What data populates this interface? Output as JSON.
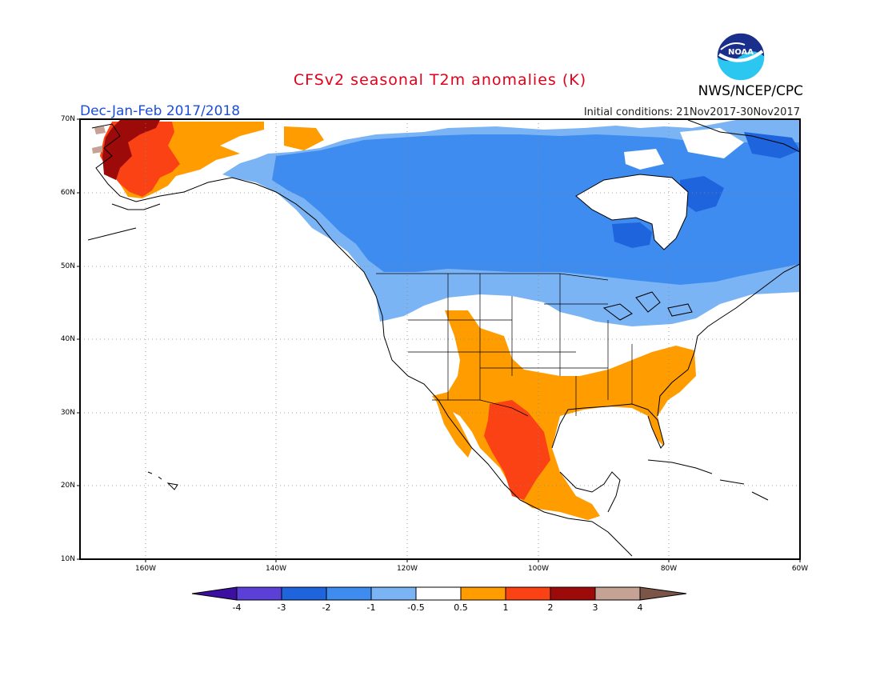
{
  "title": "CFSv2 seasonal T2m anomalies (K)",
  "agency": "NWS/NCEP/CPC",
  "season": "Dec-Jan-Feb 2017/2018",
  "initial_conditions": "Initial conditions: 21Nov2017-30Nov2017",
  "logo_text": "NOAA",
  "colors": {
    "title": "#e3001b",
    "season": "#1d4ed8",
    "cold_3": "#1e64dd",
    "cold_2": "#3f8cf0",
    "cold_1": "#7bb4f5",
    "warm_1": "#ff9c00",
    "warm_2": "#fb4214",
    "warm_3": "#9c0a0a",
    "warm_4": "#c6a295"
  },
  "lat_labels": [
    "70N",
    "60N",
    "50N",
    "40N",
    "30N",
    "20N",
    "10N"
  ],
  "lon_labels": [
    "160W",
    "140W",
    "120W",
    "100W",
    "80W",
    "60W"
  ],
  "colorbar": {
    "labels": [
      "-4",
      "-3",
      "-2",
      "-1",
      "-0.5",
      "0.5",
      "1",
      "2",
      "3",
      "4"
    ],
    "colors": [
      "#5b3fd6",
      "#1e64dd",
      "#3f8cf0",
      "#7bb4f5",
      "#ffffff",
      "#ff9c00",
      "#fb4214",
      "#9c0a0a",
      "#c6a295"
    ],
    "low_arrow": "#3c0fa0",
    "high_arrow": "#7b5548"
  }
}
